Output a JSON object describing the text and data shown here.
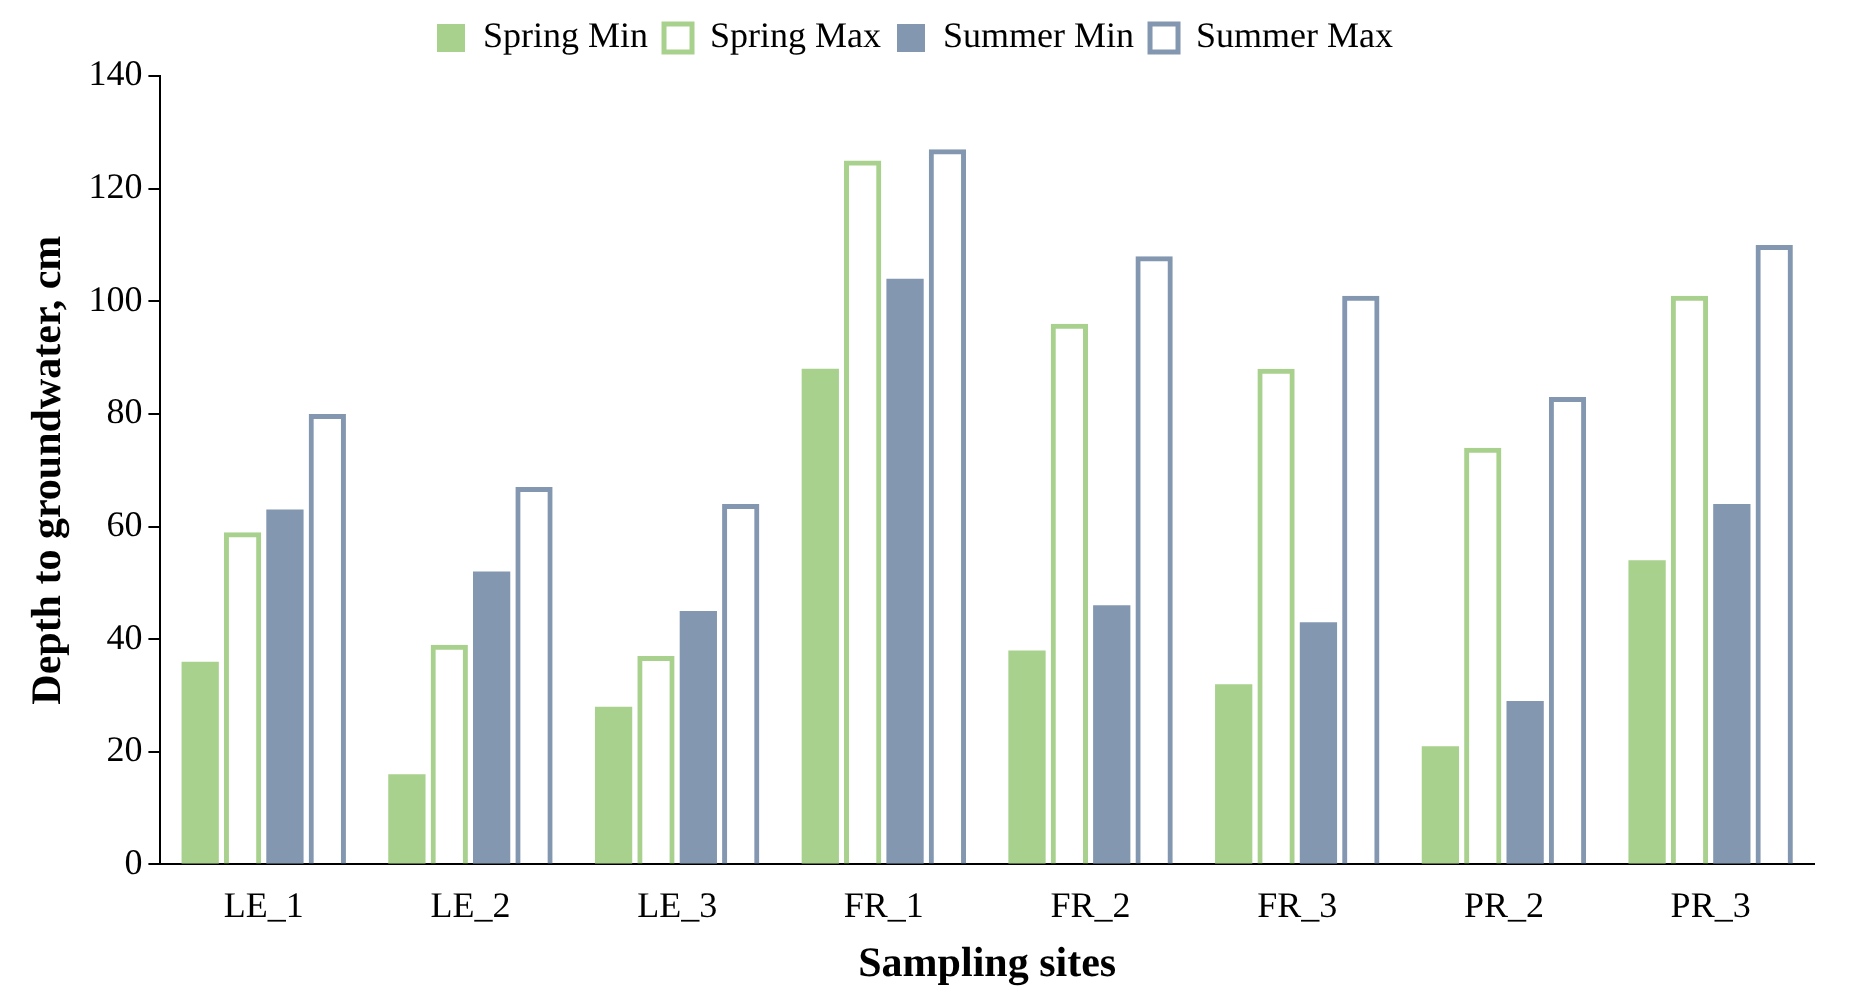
{
  "chart_data": {
    "type": "bar",
    "xlabel": "Sampling sites",
    "ylabel": "Depth to groundwater, cm",
    "categories": [
      "LE_1",
      "LE_2",
      "LE_3",
      "FR_1",
      "FR_2",
      "FR_3",
      "PR_2",
      "PR_3"
    ],
    "series": [
      {
        "name": "Spring Min",
        "color": "#a9d18e",
        "values": [
          36,
          16,
          28,
          88,
          38,
          32,
          21,
          54
        ]
      },
      {
        "name": "Spring Max",
        "color": "#a9d18e",
        "values": [
          59,
          39,
          37,
          125,
          96,
          88,
          74,
          101
        ]
      },
      {
        "name": "Summer Min",
        "color": "#8497b0",
        "values": [
          63,
          52,
          45,
          104,
          46,
          43,
          29,
          64
        ]
      },
      {
        "name": "Summer Max",
        "color": "#8497b0",
        "values": [
          80,
          67,
          64,
          127,
          108,
          101,
          83,
          110
        ]
      }
    ],
    "ylim": [
      0,
      140
    ],
    "yticks": [
      0,
      20,
      40,
      60,
      80,
      100,
      120,
      140
    ],
    "grid": false,
    "legend": "top"
  }
}
